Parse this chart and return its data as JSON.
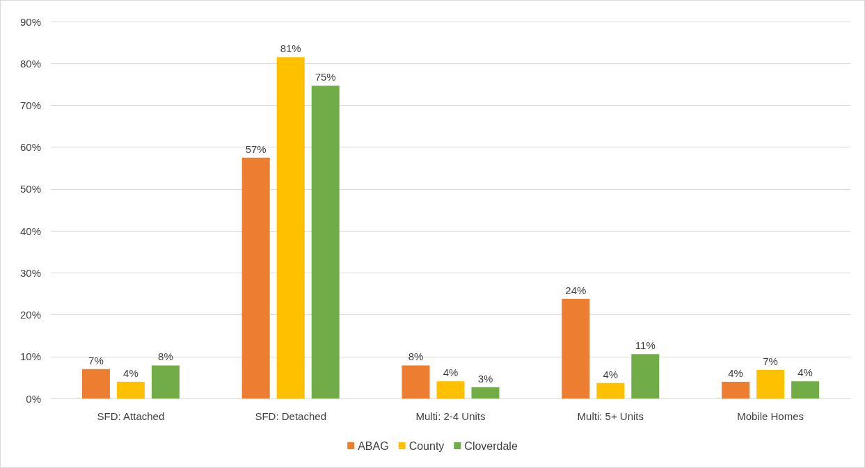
{
  "chart_data": {
    "type": "bar",
    "categories": [
      "SFD: Attached",
      "SFD: Detached",
      "Multi: 2-4 Units",
      "Multi: 5+ Units",
      "Mobile Homes"
    ],
    "series": [
      {
        "name": "ABAG",
        "color": "#ed7d31",
        "values": [
          7.0,
          57.5,
          7.9,
          23.8,
          4.0
        ],
        "value_labels": [
          "7%",
          "57%",
          "8%",
          "24%",
          "4%"
        ]
      },
      {
        "name": "County",
        "color": "#ffc000",
        "values": [
          4.0,
          81.5,
          4.1,
          3.7,
          6.8
        ],
        "value_labels": [
          "4%",
          "81%",
          "4%",
          "4%",
          "7%"
        ]
      },
      {
        "name": "Cloverdale",
        "color": "#70ad47",
        "values": [
          7.9,
          74.7,
          2.7,
          10.6,
          4.1
        ],
        "value_labels": [
          "8%",
          "75%",
          "3%",
          "11%",
          "4%"
        ]
      }
    ],
    "ylim": [
      0,
      90
    ],
    "yticks": [
      {
        "value": 0,
        "label": "0%"
      },
      {
        "value": 10,
        "label": "10%"
      },
      {
        "value": 20,
        "label": "20%"
      },
      {
        "value": 30,
        "label": "30%"
      },
      {
        "value": 40,
        "label": "40%"
      },
      {
        "value": 50,
        "label": "50%"
      },
      {
        "value": 60,
        "label": "60%"
      },
      {
        "value": 70,
        "label": "70%"
      },
      {
        "value": 80,
        "label": "80%"
      },
      {
        "value": 90,
        "label": "90%"
      }
    ],
    "grid": "y",
    "legend": "bottom"
  }
}
